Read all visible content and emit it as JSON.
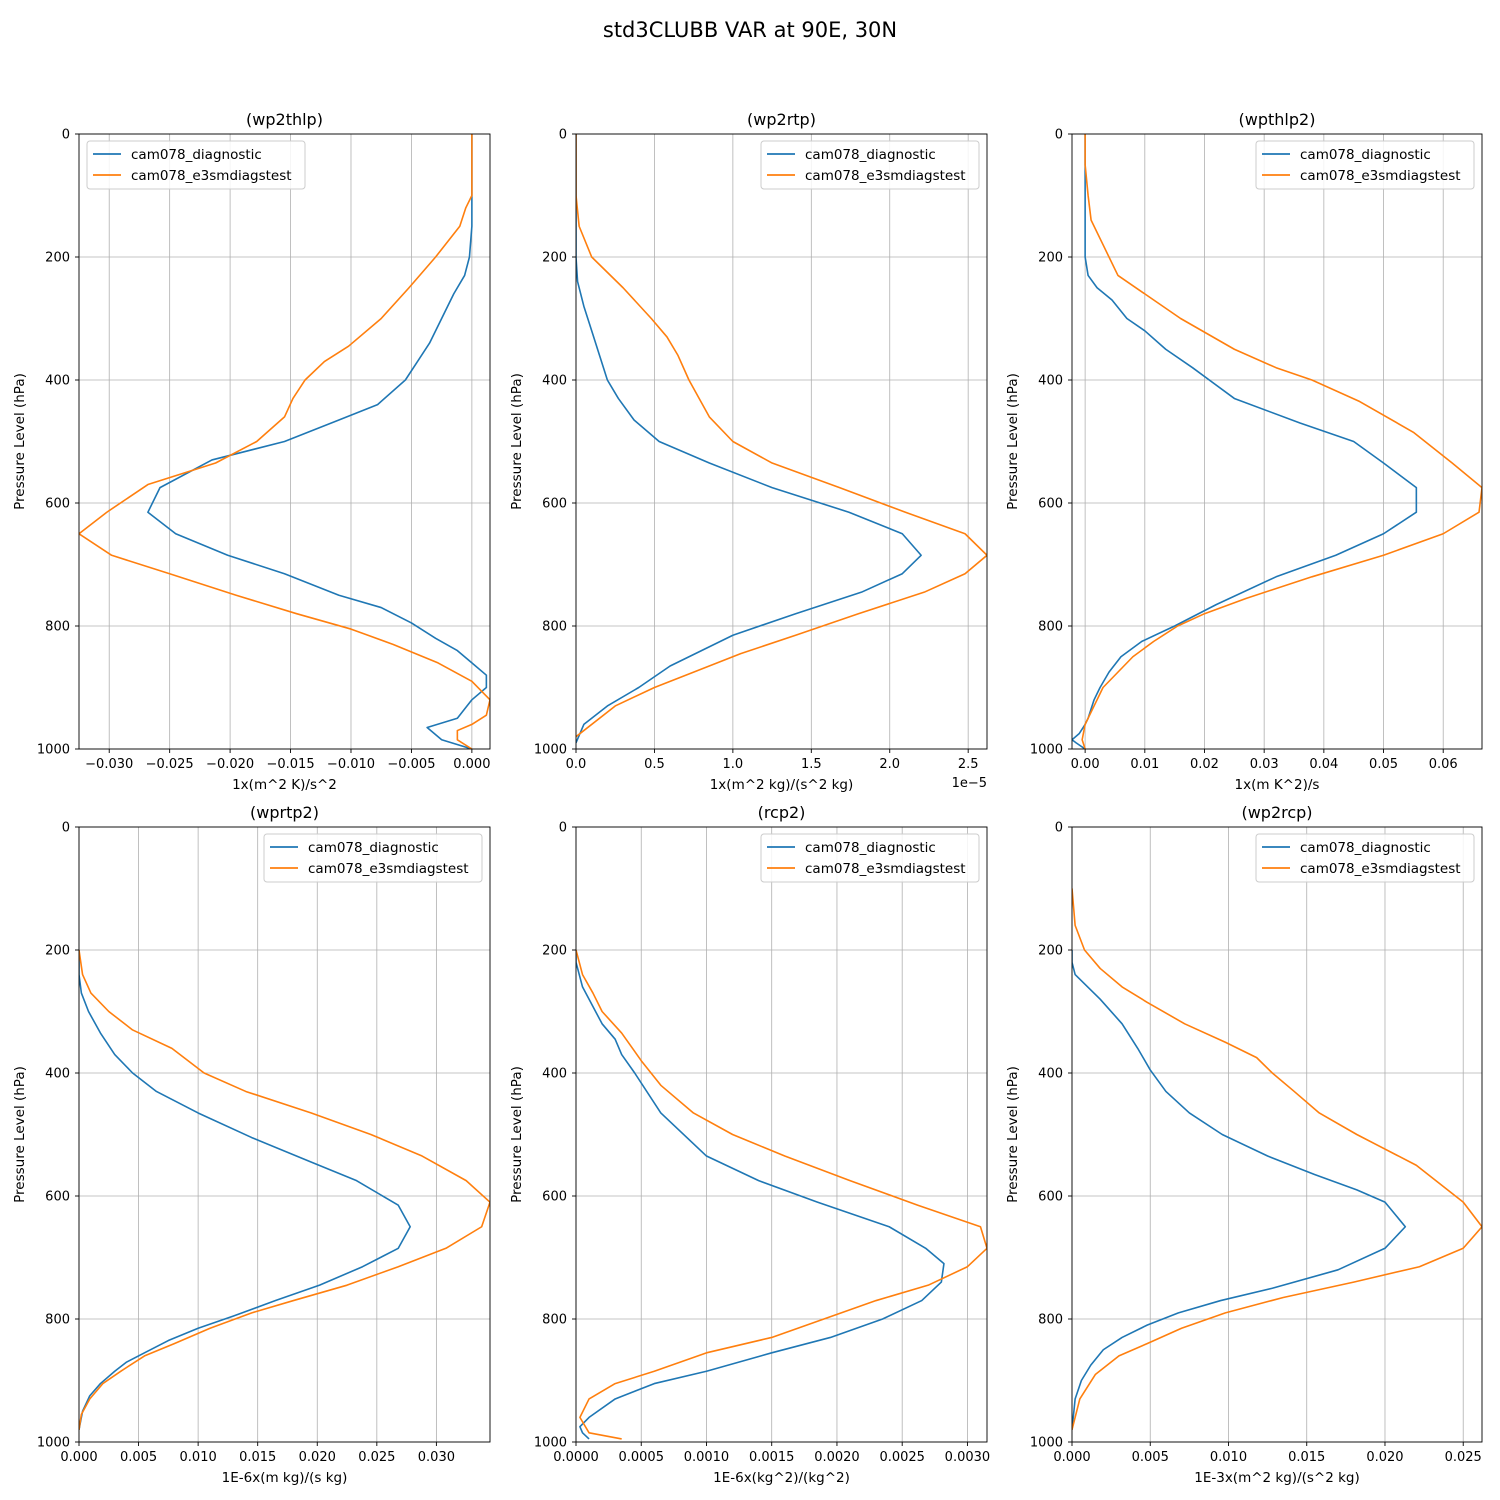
{
  "figure_title": "std3CLUBB VAR at 90E, 30N",
  "legend_labels": [
    "cam078_diagnostic",
    "cam078_e3smdiagstest"
  ],
  "colors": {
    "series1": "#1f77b4",
    "series2": "#ff7f0e",
    "grid": "#b0b0b0"
  },
  "chart_data": [
    {
      "type": "line",
      "title": "(wp2thlp)",
      "xlabel": "1x(m^2 K)/s^2",
      "ylabel": "Pressure Level (hPa)",
      "offset_text": "",
      "xlim": [
        -0.0325,
        0.0015
      ],
      "ylim": [
        1000,
        0
      ],
      "xticks": [
        -0.03,
        -0.025,
        -0.02,
        -0.015,
        -0.01,
        -0.005,
        0.0
      ],
      "xtick_labels": [
        "−0.030",
        "−0.025",
        "−0.020",
        "−0.015",
        "−0.010",
        "−0.005",
        "0.000"
      ],
      "yticks": [
        0,
        200,
        400,
        600,
        800,
        1000
      ],
      "ytick_labels": [
        "0",
        "200",
        "400",
        "600",
        "800",
        "1000"
      ],
      "legend_loc": "upper left",
      "series": [
        {
          "name": "cam078_diagnostic",
          "x": [
            0.0,
            0.0,
            0.0,
            0.0,
            -0.0002,
            -0.0006,
            -0.0015,
            -0.0025,
            -0.0035,
            -0.0045,
            -0.0055,
            -0.0078,
            -0.011,
            -0.0155,
            -0.0215,
            -0.0258,
            -0.0268,
            -0.0245,
            -0.0202,
            -0.0155,
            -0.011,
            -0.0075,
            -0.005,
            -0.003,
            -0.0012,
            0.0,
            0.0012,
            0.0012,
            0.0,
            -0.0012,
            -0.0037,
            -0.0025,
            0.0
          ],
          "y": [
            0,
            50,
            100,
            150,
            200,
            230,
            260,
            300,
            340,
            370,
            400,
            440,
            465,
            500,
            530,
            575,
            615,
            650,
            685,
            715,
            750,
            770,
            795,
            820,
            840,
            860,
            880,
            900,
            920,
            950,
            965,
            985,
            1000
          ]
        },
        {
          "name": "cam078_e3smdiagstest",
          "x": [
            0.0,
            0.0,
            0.0,
            -0.0005,
            -0.001,
            -0.003,
            -0.0052,
            -0.0075,
            -0.0102,
            -0.0122,
            -0.0138,
            -0.0148,
            -0.0155,
            -0.0178,
            -0.0212,
            -0.0268,
            -0.0302,
            -0.0325,
            -0.0298,
            -0.025,
            -0.0195,
            -0.0145,
            -0.01,
            -0.0065,
            -0.0028,
            0.0,
            0.0015,
            0.0012,
            0.0,
            -0.0012,
            -0.0012,
            0.0
          ],
          "y": [
            0,
            50,
            100,
            120,
            150,
            200,
            250,
            300,
            345,
            370,
            400,
            430,
            460,
            500,
            535,
            570,
            615,
            650,
            685,
            715,
            750,
            780,
            805,
            830,
            860,
            890,
            920,
            945,
            960,
            970,
            985,
            1000
          ]
        }
      ]
    },
    {
      "type": "line",
      "title": "(wp2rtp)",
      "xlabel": "1x(m^2 kg)/(s^2 kg)",
      "ylabel": "Pressure Level (hPa)",
      "offset_text": "1e−5",
      "xlim": [
        0.0,
        2.62
      ],
      "ylim": [
        1000,
        0
      ],
      "xticks": [
        0.0,
        0.5,
        1.0,
        1.5,
        2.0,
        2.5
      ],
      "xtick_labels": [
        "0.0",
        "0.5",
        "1.0",
        "1.5",
        "2.0",
        "2.5"
      ],
      "yticks": [
        0,
        200,
        400,
        600,
        800,
        1000
      ],
      "ytick_labels": [
        "0",
        "200",
        "400",
        "600",
        "800",
        "1000"
      ],
      "legend_loc": "upper right",
      "series": [
        {
          "name": "cam078_diagnostic",
          "x": [
            0.0,
            0.0,
            0.0,
            0.0,
            0.0,
            0.01,
            0.05,
            0.1,
            0.15,
            0.2,
            0.27,
            0.37,
            0.53,
            0.85,
            1.25,
            1.74,
            2.08,
            2.2,
            2.08,
            1.82,
            1.4,
            1.0,
            0.8,
            0.6,
            0.4,
            0.2,
            0.05,
            0.0
          ],
          "y": [
            0,
            50,
            100,
            150,
            200,
            240,
            280,
            320,
            360,
            400,
            430,
            465,
            500,
            535,
            575,
            615,
            650,
            685,
            715,
            745,
            780,
            815,
            840,
            865,
            900,
            930,
            960,
            990
          ]
        },
        {
          "name": "cam078_e3smdiagstest",
          "x": [
            0.0,
            0.0,
            0.0,
            0.02,
            0.1,
            0.3,
            0.48,
            0.58,
            0.65,
            0.72,
            0.85,
            1.0,
            1.25,
            1.68,
            2.1,
            2.48,
            2.62,
            2.48,
            2.22,
            1.8,
            1.4,
            1.05,
            0.75,
            0.5,
            0.25,
            0.0
          ],
          "y": [
            0,
            50,
            100,
            150,
            200,
            250,
            300,
            330,
            360,
            400,
            460,
            500,
            535,
            575,
            615,
            650,
            685,
            715,
            745,
            780,
            815,
            845,
            875,
            900,
            930,
            980
          ]
        }
      ]
    },
    {
      "type": "line",
      "title": "(wpthlp2)",
      "xlabel": "1x(m K^2)/s",
      "ylabel": "Pressure Level (hPa)",
      "offset_text": "",
      "xlim": [
        -0.0022,
        0.0665
      ],
      "ylim": [
        1000,
        0
      ],
      "xticks": [
        0.0,
        0.01,
        0.02,
        0.03,
        0.04,
        0.05,
        0.06
      ],
      "xtick_labels": [
        "0.00",
        "0.01",
        "0.02",
        "0.03",
        "0.04",
        "0.05",
        "0.06"
      ],
      "yticks": [
        0,
        200,
        400,
        600,
        800,
        1000
      ],
      "ytick_labels": [
        "0",
        "200",
        "400",
        "600",
        "800",
        "1000"
      ],
      "legend_loc": "upper right",
      "series": [
        {
          "name": "cam078_diagnostic",
          "x": [
            0.0,
            0.0,
            0.0,
            0.0,
            0.0,
            0.0005,
            0.002,
            0.0045,
            0.007,
            0.01,
            0.0135,
            0.018,
            0.025,
            0.036,
            0.045,
            0.05,
            0.0555,
            0.0555,
            0.05,
            0.042,
            0.032,
            0.022,
            0.015,
            0.0095,
            0.006,
            0.004,
            0.0025,
            0.0015,
            0.0005,
            0.0,
            -0.001,
            -0.0022,
            -0.0015,
            0.0
          ],
          "y": [
            0,
            50,
            100,
            150,
            200,
            230,
            250,
            270,
            300,
            320,
            350,
            380,
            430,
            470,
            500,
            535,
            575,
            615,
            650,
            685,
            720,
            765,
            800,
            825,
            850,
            875,
            900,
            920,
            950,
            960,
            975,
            985,
            990,
            1000
          ]
        },
        {
          "name": "cam078_e3smdiagstest",
          "x": [
            0.0,
            0.0,
            0.0005,
            0.001,
            0.003,
            0.0055,
            0.01,
            0.016,
            0.025,
            0.032,
            0.038,
            0.046,
            0.055,
            0.0615,
            0.0665,
            0.066,
            0.06,
            0.05,
            0.038,
            0.027,
            0.02,
            0.0155,
            0.0115,
            0.008,
            0.0055,
            0.003,
            0.0015,
            0.0,
            -0.0005,
            0.0
          ],
          "y": [
            0,
            50,
            100,
            140,
            180,
            230,
            260,
            300,
            350,
            380,
            400,
            435,
            485,
            535,
            575,
            615,
            650,
            685,
            720,
            755,
            780,
            800,
            825,
            850,
            875,
            900,
            930,
            960,
            985,
            1000
          ]
        }
      ]
    },
    {
      "type": "line",
      "title": "(wprtp2)",
      "xlabel": "1E-6x(m kg)/(s kg)",
      "ylabel": "Pressure Level (hPa)",
      "offset_text": "",
      "xlim": [
        0.0,
        0.0345
      ],
      "ylim": [
        1000,
        0
      ],
      "xticks": [
        0.0,
        0.005,
        0.01,
        0.015,
        0.02,
        0.025,
        0.03
      ],
      "xtick_labels": [
        "0.000",
        "0.005",
        "0.010",
        "0.015",
        "0.020",
        "0.025",
        "0.030"
      ],
      "yticks": [
        0,
        200,
        400,
        600,
        800,
        1000
      ],
      "ytick_labels": [
        "0",
        "200",
        "400",
        "600",
        "800",
        "1000"
      ],
      "legend_loc": "upper right",
      "series": [
        {
          "name": "cam078_diagnostic",
          "x": [
            0.0,
            0.0,
            0.0002,
            0.0008,
            0.0018,
            0.003,
            0.0045,
            0.0065,
            0.01,
            0.0145,
            0.0195,
            0.0233,
            0.0268,
            0.0278,
            0.0268,
            0.0238,
            0.0202,
            0.0165,
            0.013,
            0.01,
            0.0075,
            0.0055,
            0.004,
            0.003,
            0.0018,
            0.0009,
            0.0003,
            0.0
          ],
          "y": [
            200,
            240,
            270,
            300,
            335,
            370,
            400,
            430,
            465,
            505,
            545,
            575,
            615,
            650,
            685,
            715,
            745,
            770,
            795,
            815,
            835,
            855,
            870,
            885,
            905,
            925,
            950,
            980
          ]
        },
        {
          "name": "cam078_e3smdiagstest",
          "x": [
            0.0,
            0.0003,
            0.001,
            0.0025,
            0.0045,
            0.0078,
            0.0105,
            0.014,
            0.0195,
            0.0245,
            0.0288,
            0.0325,
            0.0345,
            0.0338,
            0.0308,
            0.0268,
            0.0225,
            0.018,
            0.0145,
            0.011,
            0.008,
            0.0055,
            0.0035,
            0.002,
            0.0009,
            0.0002,
            0.0
          ],
          "y": [
            200,
            240,
            270,
            300,
            330,
            360,
            400,
            430,
            465,
            500,
            535,
            575,
            610,
            650,
            685,
            715,
            745,
            770,
            790,
            815,
            840,
            860,
            885,
            905,
            930,
            955,
            980
          ]
        }
      ]
    },
    {
      "type": "line",
      "title": "(rcp2)",
      "xlabel": "1E-6x(kg^2)/(kg^2)",
      "ylabel": "Pressure Level (hPa)",
      "offset_text": "",
      "xlim": [
        0.0,
        0.00315
      ],
      "ylim": [
        1000,
        0
      ],
      "xticks": [
        0.0,
        0.0005,
        0.001,
        0.0015,
        0.002,
        0.0025,
        0.003
      ],
      "xtick_labels": [
        "0.0000",
        "0.0005",
        "0.0010",
        "0.0015",
        "0.0020",
        "0.0025",
        "0.0030"
      ],
      "yticks": [
        0,
        200,
        400,
        600,
        800,
        1000
      ],
      "ytick_labels": [
        "0",
        "200",
        "400",
        "600",
        "800",
        "1000"
      ],
      "legend_loc": "upper right",
      "series": [
        {
          "name": "cam078_diagnostic",
          "x": [
            0.0,
            0.0,
            5e-05,
            0.00015,
            0.0002,
            0.0003,
            0.00035,
            0.00045,
            0.00065,
            0.001,
            0.0014,
            0.00185,
            0.0024,
            0.00268,
            0.00282,
            0.0028,
            0.00265,
            0.00235,
            0.00195,
            0.0015,
            0.001,
            0.0006,
            0.0003,
            0.0001,
            3e-05,
            5e-05,
            0.0001
          ],
          "y": [
            200,
            220,
            260,
            300,
            320,
            345,
            370,
            400,
            465,
            535,
            575,
            610,
            650,
            685,
            710,
            740,
            770,
            800,
            830,
            855,
            885,
            905,
            930,
            960,
            975,
            985,
            995
          ]
        },
        {
          "name": "cam078_e3smdiagstest",
          "x": [
            0.0,
            5e-05,
            0.00013,
            0.0002,
            0.00035,
            0.0005,
            0.00065,
            0.0009,
            0.0012,
            0.0016,
            0.0021,
            0.00262,
            0.0031,
            0.00315,
            0.003,
            0.0027,
            0.0023,
            0.0019,
            0.0015,
            0.001,
            0.0006,
            0.0003,
            0.0001,
            3e-05,
            0.0001,
            0.00035
          ],
          "y": [
            200,
            240,
            270,
            300,
            335,
            380,
            420,
            465,
            500,
            535,
            575,
            615,
            650,
            685,
            715,
            745,
            770,
            800,
            830,
            855,
            885,
            905,
            930,
            960,
            985,
            995
          ]
        }
      ]
    },
    {
      "type": "line",
      "title": "(wp2rcp)",
      "xlabel": "1E-3x(m^2 kg)/(s^2 kg)",
      "ylabel": "Pressure Level (hPa)",
      "offset_text": "",
      "xlim": [
        0.0,
        0.0262
      ],
      "ylim": [
        1000,
        0
      ],
      "xticks": [
        0.0,
        0.005,
        0.01,
        0.015,
        0.02,
        0.025
      ],
      "xtick_labels": [
        "0.000",
        "0.005",
        "0.010",
        "0.015",
        "0.020",
        "0.025"
      ],
      "yticks": [
        0,
        200,
        400,
        600,
        800,
        1000
      ],
      "ytick_labels": [
        "0",
        "200",
        "400",
        "600",
        "800",
        "1000"
      ],
      "legend_loc": "upper right",
      "series": [
        {
          "name": "cam078_diagnostic",
          "x": [
            0.0,
            0.0,
            0.0002,
            0.0008,
            0.0018,
            0.0032,
            0.0042,
            0.005,
            0.006,
            0.0075,
            0.0096,
            0.0125,
            0.0155,
            0.0182,
            0.02,
            0.0213,
            0.02,
            0.017,
            0.0128,
            0.0095,
            0.0068,
            0.0048,
            0.0032,
            0.002,
            0.0012,
            0.0006,
            0.0002,
            0.0
          ],
          "y": [
            200,
            220,
            240,
            255,
            280,
            320,
            360,
            395,
            430,
            465,
            500,
            535,
            565,
            590,
            610,
            650,
            685,
            720,
            750,
            770,
            790,
            810,
            830,
            850,
            875,
            900,
            930,
            980
          ]
        },
        {
          "name": "cam078_e3smdiagstest",
          "x": [
            0.0,
            0.0002,
            0.0008,
            0.0018,
            0.0032,
            0.0048,
            0.0072,
            0.0098,
            0.0118,
            0.0128,
            0.0142,
            0.0158,
            0.0182,
            0.022,
            0.025,
            0.0262,
            0.025,
            0.0222,
            0.018,
            0.0135,
            0.0098,
            0.007,
            0.0048,
            0.003,
            0.0015,
            0.0005,
            0.0
          ],
          "y": [
            100,
            160,
            200,
            230,
            260,
            285,
            320,
            350,
            375,
            400,
            430,
            465,
            500,
            550,
            610,
            650,
            685,
            715,
            740,
            765,
            790,
            815,
            840,
            860,
            890,
            930,
            980
          ]
        }
      ]
    }
  ]
}
